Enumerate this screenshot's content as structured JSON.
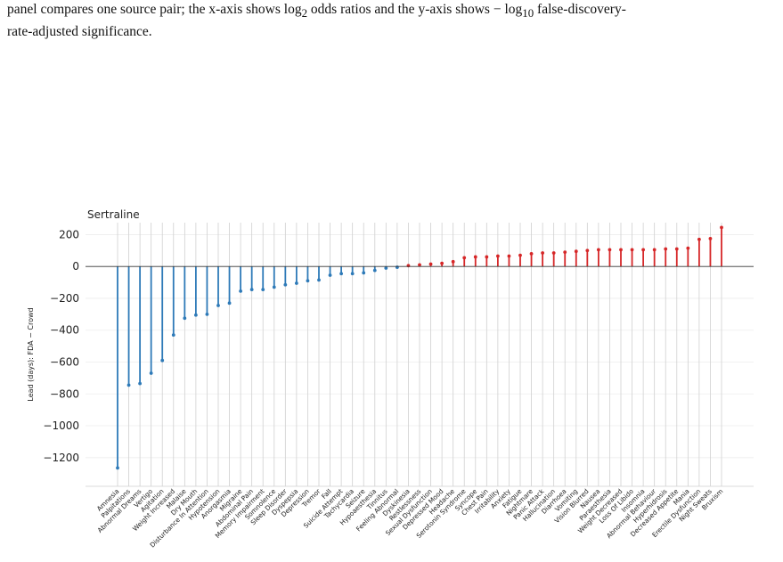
{
  "caption": {
    "p1": "panel compares one source pair; the x-axis shows log",
    "sub2": "2",
    "p2": " odds ratios and the y-axis shows − log",
    "sub10": "10",
    "p3": " false-discovery-",
    "line2": "rate-adjusted significance."
  },
  "chart_data": {
    "type": "bar",
    "title": "Sertraline",
    "xlabel": "",
    "ylabel": "Lead (days): FDA − Crowd",
    "ylim": [
      -1380,
      275
    ],
    "yticks": [
      200,
      0,
      -200,
      -400,
      -600,
      -800,
      -1000,
      -1200
    ],
    "ytick_labels": [
      "200",
      "0",
      "−200",
      "−400",
      "−600",
      "−800",
      "−1000",
      "−1200"
    ],
    "grid": true,
    "colors": {
      "negative": "#2e7ab8",
      "positive": "#d62728",
      "grid": "#d0d0d0",
      "zero": "#333333"
    },
    "categories": [
      "Amnesia",
      "Palpitations",
      "Abnormal Dreams",
      "Vertigo",
      "Agitation",
      "Weight Increased",
      "Malaise",
      "Dry Mouth",
      "Disturbance In Attention",
      "Hypotension",
      "Anorgasmia",
      "Migraine",
      "Abdominal Pain",
      "Memory Impairment",
      "Somnolence",
      "Sleep Disorder",
      "Dyspepsia",
      "Depression",
      "Tremor",
      "Fall",
      "Suicide Attempt",
      "Tachycardia",
      "Seizure",
      "Hypoaesthesia",
      "Tinnitus",
      "Feeling Abnormal",
      "Dyskinesia",
      "Restlessness",
      "Sexual Dysfunction",
      "Depressed Mood",
      "Headache",
      "Serotonin Syndrome",
      "Syncope",
      "Chest Pain",
      "Irritability",
      "Anxiety",
      "Fatigue",
      "Nightmare",
      "Panic Attack",
      "Hallucination",
      "Diarrhoea",
      "Vomiting",
      "Vision Blurred",
      "Nausea",
      "Paraesthesia",
      "Weight Decreased",
      "Loss Of Libido",
      "Insomnia",
      "Abnormal Behaviour",
      "Hyperhidrosis",
      "Decreased Appetite",
      "Mania",
      "Erectile Dysfunction",
      "Night Sweats",
      "Bruxism"
    ],
    "values": [
      -1265,
      -745,
      -735,
      -670,
      -590,
      -430,
      -325,
      -305,
      -300,
      -245,
      -230,
      -155,
      -145,
      -145,
      -130,
      -115,
      -105,
      -90,
      -85,
      -55,
      -45,
      -45,
      -40,
      -25,
      -10,
      -5,
      5,
      10,
      15,
      20,
      30,
      55,
      60,
      60,
      65,
      65,
      70,
      80,
      85,
      85,
      90,
      95,
      100,
      105,
      105,
      105,
      105,
      105,
      105,
      110,
      110,
      115,
      170,
      175,
      245
    ]
  }
}
